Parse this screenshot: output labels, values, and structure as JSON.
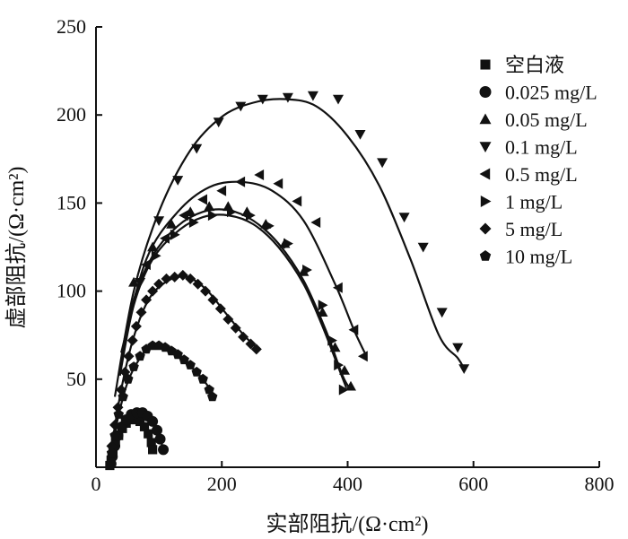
{
  "chart_data": {
    "type": "scatter",
    "xlabel": "实部阻抗/(Ω·cm²)",
    "ylabel": "虚部阻抗/(Ω·cm²)",
    "xlim": [
      0,
      800
    ],
    "ylim": [
      0,
      250
    ],
    "x_ticks": [
      "0",
      "200",
      "400",
      "600",
      "800"
    ],
    "y_ticks": [
      "50",
      "100",
      "150",
      "200",
      "250"
    ],
    "legend_position": "top-right",
    "grid": false,
    "series": [
      {
        "name": "空白液",
        "marker": "square",
        "points": [
          [
            22,
            1
          ],
          [
            24,
            4
          ],
          [
            27,
            9
          ],
          [
            31,
            14
          ],
          [
            36,
            18
          ],
          [
            42,
            22
          ],
          [
            48,
            25
          ],
          [
            55,
            27
          ],
          [
            62,
            27
          ],
          [
            70,
            26
          ],
          [
            77,
            23
          ],
          [
            83,
            19
          ],
          [
            88,
            14
          ],
          [
            90,
            10
          ]
        ],
        "fit": [
          [
            22,
            1
          ],
          [
            28,
            10
          ],
          [
            36,
            18
          ],
          [
            46,
            24
          ],
          [
            58,
            27
          ],
          [
            70,
            26
          ],
          [
            80,
            21
          ],
          [
            88,
            14
          ],
          [
            92,
            8
          ]
        ]
      },
      {
        "name": "0.025 mg/L",
        "marker": "circle",
        "points": [
          [
            24,
            2
          ],
          [
            26,
            6
          ],
          [
            30,
            12
          ],
          [
            35,
            18
          ],
          [
            41,
            23
          ],
          [
            48,
            27
          ],
          [
            56,
            30
          ],
          [
            65,
            31
          ],
          [
            74,
            31
          ],
          [
            82,
            29
          ],
          [
            90,
            26
          ],
          [
            97,
            21
          ],
          [
            102,
            16
          ],
          [
            107,
            10
          ]
        ],
        "fit": [
          [
            24,
            2
          ],
          [
            30,
            12
          ],
          [
            40,
            22
          ],
          [
            52,
            29
          ],
          [
            66,
            32
          ],
          [
            80,
            30
          ],
          [
            92,
            25
          ],
          [
            102,
            16
          ],
          [
            108,
            9
          ]
        ]
      },
      {
        "name": "0.05 mg/L",
        "marker": "triangle-up",
        "points": [
          [
            60,
            105
          ],
          [
            90,
            125
          ],
          [
            120,
            138
          ],
          [
            150,
            145
          ],
          [
            180,
            148
          ],
          [
            210,
            148
          ],
          [
            240,
            145
          ],
          [
            270,
            138
          ],
          [
            300,
            127
          ],
          [
            330,
            111
          ],
          [
            360,
            88
          ],
          [
            380,
            68
          ],
          [
            395,
            55
          ],
          [
            405,
            46
          ]
        ],
        "fit": [
          [
            38,
            55
          ],
          [
            60,
            95
          ],
          [
            90,
            120
          ],
          [
            130,
            137
          ],
          [
            170,
            145
          ],
          [
            210,
            146
          ],
          [
            250,
            140
          ],
          [
            290,
            127
          ],
          [
            330,
            106
          ],
          [
            365,
            78
          ],
          [
            392,
            52
          ],
          [
            405,
            44
          ]
        ]
      },
      {
        "name": "0.1 mg/L",
        "marker": "triangle-down",
        "points": [
          [
            70,
            105
          ],
          [
            100,
            140
          ],
          [
            130,
            163
          ],
          [
            160,
            181
          ],
          [
            195,
            196
          ],
          [
            230,
            205
          ],
          [
            265,
            209
          ],
          [
            305,
            210
          ],
          [
            345,
            211
          ],
          [
            385,
            209
          ],
          [
            420,
            189
          ],
          [
            455,
            173
          ],
          [
            490,
            142
          ],
          [
            520,
            125
          ],
          [
            550,
            88
          ],
          [
            575,
            68
          ],
          [
            585,
            56
          ]
        ],
        "fit": [
          [
            30,
            40
          ],
          [
            60,
            100
          ],
          [
            100,
            145
          ],
          [
            150,
            180
          ],
          [
            200,
            199
          ],
          [
            250,
            207
          ],
          [
            300,
            209
          ],
          [
            350,
            205
          ],
          [
            400,
            188
          ],
          [
            450,
            160
          ],
          [
            500,
            118
          ],
          [
            545,
            75
          ],
          [
            575,
            62
          ],
          [
            585,
            56
          ]
        ]
      },
      {
        "name": "0.5 mg/L",
        "marker": "triangle-left",
        "points": [
          [
            80,
            115
          ],
          [
            110,
            130
          ],
          [
            140,
            143
          ],
          [
            170,
            152
          ],
          [
            200,
            157
          ],
          [
            230,
            162
          ],
          [
            260,
            166
          ],
          [
            290,
            161
          ],
          [
            320,
            151
          ],
          [
            350,
            139
          ],
          [
            385,
            102
          ],
          [
            410,
            78
          ],
          [
            425,
            63
          ]
        ],
        "fit": [
          [
            40,
            65
          ],
          [
            80,
            118
          ],
          [
            130,
            145
          ],
          [
            180,
            159
          ],
          [
            230,
            162
          ],
          [
            280,
            157
          ],
          [
            330,
            140
          ],
          [
            380,
            104
          ],
          [
            410,
            78
          ],
          [
            430,
            63
          ]
        ]
      },
      {
        "name": "1 mg/L",
        "marker": "triangle-right",
        "points": [
          [
            95,
            120
          ],
          [
            125,
            132
          ],
          [
            155,
            139
          ],
          [
            185,
            143
          ],
          [
            215,
            145
          ],
          [
            245,
            143
          ],
          [
            275,
            137
          ],
          [
            305,
            127
          ],
          [
            335,
            112
          ],
          [
            360,
            92
          ],
          [
            375,
            72
          ],
          [
            385,
            58
          ],
          [
            393,
            44
          ]
        ],
        "fit": [
          [
            38,
            52
          ],
          [
            60,
            92
          ],
          [
            90,
            118
          ],
          [
            130,
            134
          ],
          [
            170,
            142
          ],
          [
            210,
            143
          ],
          [
            250,
            138
          ],
          [
            290,
            125
          ],
          [
            330,
            104
          ],
          [
            360,
            80
          ],
          [
            385,
            57
          ],
          [
            398,
            45
          ]
        ]
      },
      {
        "name": "5 mg/L",
        "marker": "diamond",
        "points": [
          [
            25,
            12
          ],
          [
            30,
            24
          ],
          [
            35,
            34
          ],
          [
            40,
            44
          ],
          [
            46,
            54
          ],
          [
            52,
            63
          ],
          [
            58,
            72
          ],
          [
            64,
            80
          ],
          [
            72,
            88
          ],
          [
            80,
            95
          ],
          [
            90,
            100
          ],
          [
            100,
            104
          ],
          [
            112,
            107
          ],
          [
            125,
            108
          ],
          [
            138,
            109
          ],
          [
            150,
            107
          ],
          [
            162,
            104
          ],
          [
            174,
            100
          ],
          [
            186,
            95
          ],
          [
            198,
            90
          ],
          [
            210,
            84
          ],
          [
            222,
            79
          ],
          [
            234,
            74
          ],
          [
            246,
            70
          ],
          [
            255,
            67
          ]
        ],
        "fit": [
          [
            25,
            12
          ],
          [
            40,
            44
          ],
          [
            60,
            74
          ],
          [
            85,
            96
          ],
          [
            115,
            106
          ],
          [
            145,
            108
          ],
          [
            175,
            101
          ],
          [
            205,
            88
          ],
          [
            235,
            75
          ],
          [
            258,
            67
          ]
        ]
      },
      {
        "name": "10 mg/L",
        "marker": "pentagon",
        "points": [
          [
            25,
            8
          ],
          [
            30,
            18
          ],
          [
            36,
            30
          ],
          [
            43,
            40
          ],
          [
            51,
            50
          ],
          [
            60,
            57
          ],
          [
            70,
            63
          ],
          [
            80,
            67
          ],
          [
            90,
            69
          ],
          [
            100,
            69
          ],
          [
            110,
            68
          ],
          [
            120,
            66
          ],
          [
            130,
            64
          ],
          [
            140,
            61
          ],
          [
            150,
            58
          ],
          [
            160,
            54
          ],
          [
            170,
            50
          ],
          [
            180,
            44
          ],
          [
            185,
            40
          ]
        ],
        "fit": [
          [
            25,
            8
          ],
          [
            35,
            28
          ],
          [
            50,
            48
          ],
          [
            70,
            62
          ],
          [
            90,
            69
          ],
          [
            110,
            68
          ],
          [
            135,
            62
          ],
          [
            160,
            54
          ],
          [
            180,
            45
          ],
          [
            187,
            40
          ]
        ]
      }
    ]
  }
}
